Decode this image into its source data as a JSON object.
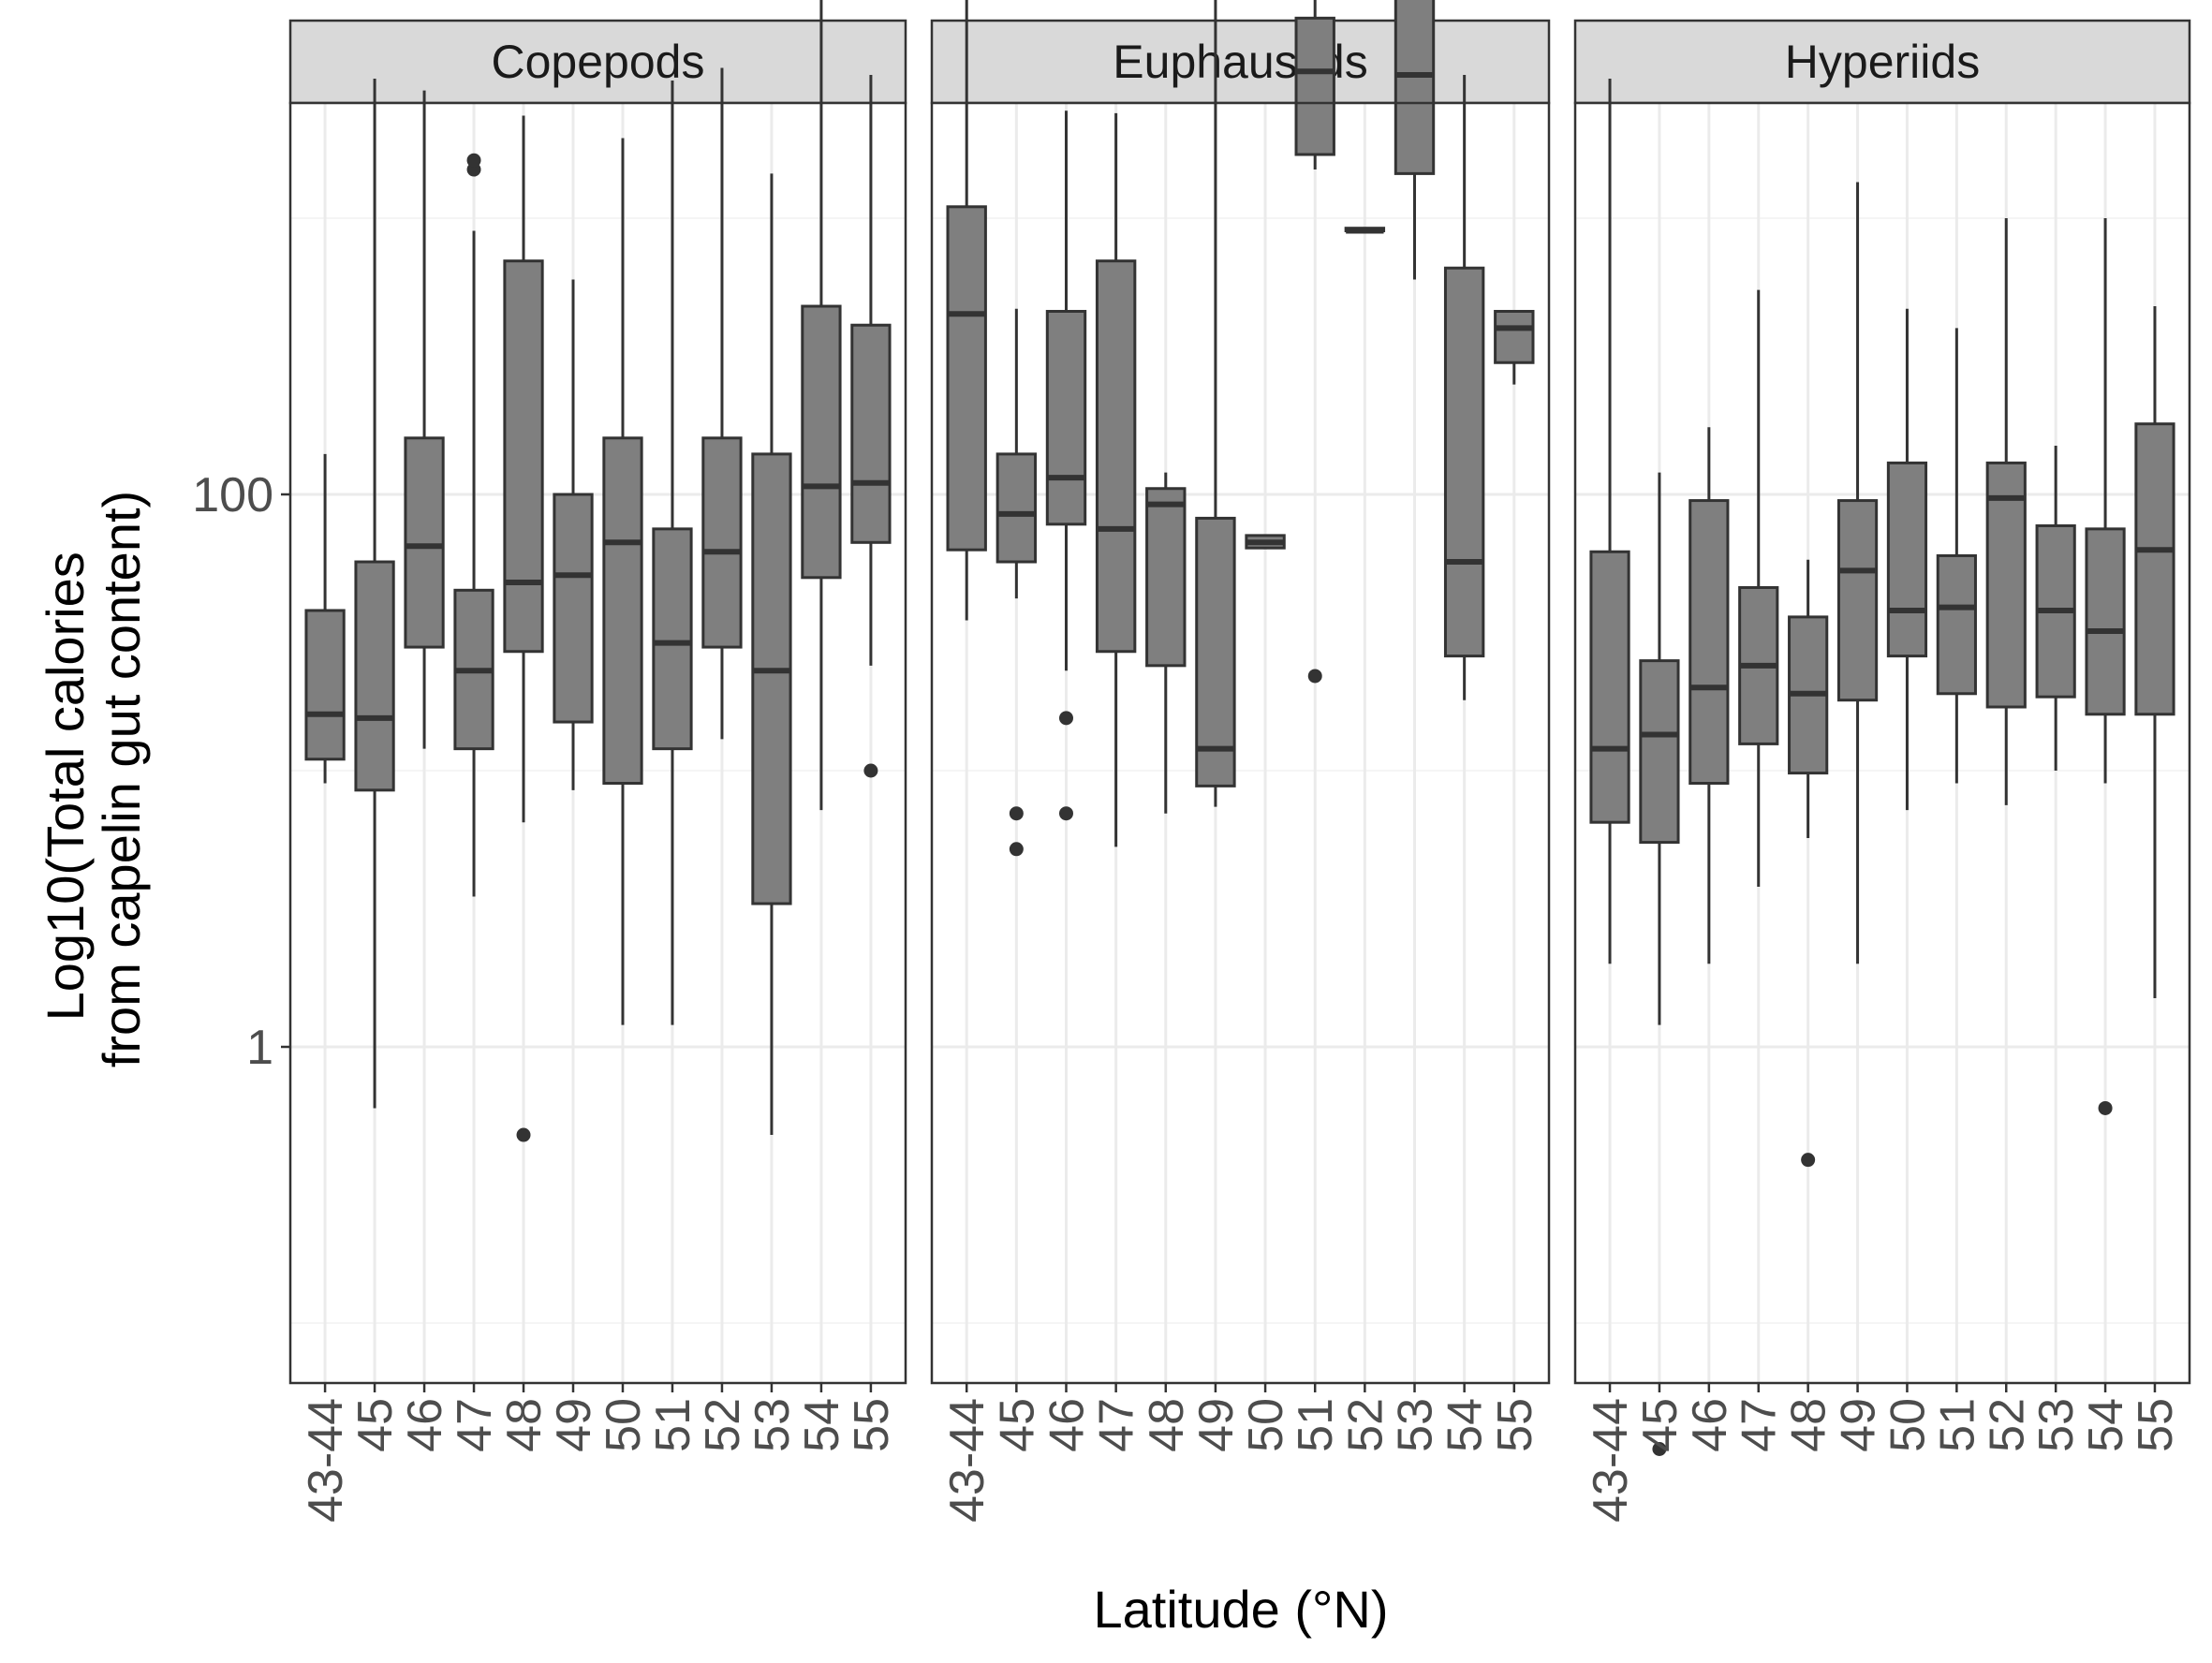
{
  "chart_data": {
    "type": "boxplot",
    "facets": [
      "Copepods",
      "Euphausiids",
      "Hyperiids"
    ],
    "categories": [
      "43-44",
      "45",
      "46",
      "47",
      "48",
      "49",
      "50",
      "51",
      "52",
      "53",
      "54",
      "55"
    ],
    "xlabel": "Latitude (°N)",
    "ylabel_lines": [
      "Log10(Total calories",
      "from capelin gut content)"
    ],
    "yscale": "log10",
    "ylim": [
      0.01,
      25000
    ],
    "yticks": [
      1,
      100
    ],
    "ytick_labels": [
      "1",
      "100"
    ],
    "grid": "on",
    "panels": [
      {
        "facet": "Copepods",
        "boxes": [
          {
            "category": "43-44",
            "whisker_low": 9,
            "q1": 11,
            "median": 16,
            "q3": 38,
            "whisker_high": 140,
            "outliers": []
          },
          {
            "category": "45",
            "whisker_low": 0.6,
            "q1": 8.5,
            "median": 15.5,
            "q3": 57,
            "whisker_high": 3200,
            "outliers": []
          },
          {
            "category": "46",
            "whisker_low": 12,
            "q1": 28,
            "median": 65,
            "q3": 160,
            "whisker_high": 2900,
            "outliers": []
          },
          {
            "category": "47",
            "whisker_low": 3.5,
            "q1": 12,
            "median": 23,
            "q3": 45,
            "whisker_high": 900,
            "outliers": [
              1500,
              1620
            ]
          },
          {
            "category": "48",
            "whisker_low": 6.5,
            "q1": 27,
            "median": 48,
            "q3": 700,
            "whisker_high": 2350,
            "outliers": [
              0.48
            ]
          },
          {
            "category": "49",
            "whisker_low": 8.5,
            "q1": 15,
            "median": 51,
            "q3": 100,
            "whisker_high": 600,
            "outliers": []
          },
          {
            "category": "50",
            "whisker_low": 1.2,
            "q1": 9,
            "median": 67,
            "q3": 160,
            "whisker_high": 1950,
            "outliers": []
          },
          {
            "category": "51",
            "whisker_low": 1.2,
            "q1": 12,
            "median": 29,
            "q3": 75,
            "whisker_high": 3150,
            "outliers": []
          },
          {
            "category": "52",
            "whisker_low": 13,
            "q1": 28,
            "median": 62,
            "q3": 160,
            "whisker_high": 3500,
            "outliers": []
          },
          {
            "category": "53",
            "whisker_low": 0.48,
            "q1": 3.3,
            "median": 23,
            "q3": 140,
            "whisker_high": 1450,
            "outliers": []
          },
          {
            "category": "54",
            "whisker_low": 7.2,
            "q1": 50,
            "median": 107,
            "q3": 480,
            "whisker_high": 11000,
            "outliers": []
          },
          {
            "category": "55",
            "whisker_low": 24,
            "q1": 67,
            "median": 110,
            "q3": 410,
            "whisker_high": 3300,
            "outliers": [
              10
            ]
          }
        ]
      },
      {
        "facet": "Euphausiids",
        "boxes": [
          {
            "category": "43-44",
            "whisker_low": 35,
            "q1": 63,
            "median": 450,
            "q3": 1100,
            "whisker_high": 17000,
            "outliers": []
          },
          {
            "category": "45",
            "whisker_low": 42,
            "q1": 57,
            "median": 85,
            "q3": 140,
            "whisker_high": 470,
            "outliers": [
              7,
              5.2
            ]
          },
          {
            "category": "46",
            "whisker_low": 23,
            "q1": 78,
            "median": 115,
            "q3": 460,
            "whisker_high": 2450,
            "outliers": [
              15.5,
              7
            ]
          },
          {
            "category": "47",
            "whisker_low": 5.3,
            "q1": 27,
            "median": 75,
            "q3": 700,
            "whisker_high": 2400,
            "outliers": []
          },
          {
            "category": "48",
            "whisker_low": 7,
            "q1": 24,
            "median": 92,
            "q3": 105,
            "whisker_high": 120,
            "outliers": []
          },
          {
            "category": "49",
            "whisker_low": 7.4,
            "q1": 8.8,
            "median": 12,
            "q3": 82,
            "whisker_high": 9800,
            "outliers": []
          },
          {
            "category": "50",
            "whisker_low": 64,
            "q1": 64,
            "median": 67,
            "q3": 71,
            "whisker_high": 71,
            "outliers": []
          },
          {
            "category": "51",
            "whisker_low": 1500,
            "q1": 1700,
            "median": 3400,
            "q3": 5300,
            "whisker_high": 7500,
            "outliers": [
              22
            ]
          },
          {
            "category": "52",
            "whisker_low": 900,
            "q1": 900,
            "median": 900,
            "q3": 920,
            "whisker_high": 920,
            "outliers": []
          },
          {
            "category": "53",
            "whisker_low": 600,
            "q1": 1450,
            "median": 3300,
            "q3": 7400,
            "whisker_high": 14500,
            "outliers": []
          },
          {
            "category": "54",
            "whisker_low": 18,
            "q1": 26,
            "median": 57,
            "q3": 660,
            "whisker_high": 3300,
            "outliers": []
          },
          {
            "category": "55",
            "whisker_low": 250,
            "q1": 300,
            "median": 400,
            "q3": 460,
            "whisker_high": 460,
            "outliers": []
          }
        ]
      },
      {
        "facet": "Hyperiids",
        "boxes": [
          {
            "category": "43-44",
            "whisker_low": 2,
            "q1": 6.5,
            "median": 12,
            "q3": 62,
            "whisker_high": 3200,
            "outliers": []
          },
          {
            "category": "45",
            "whisker_low": 1.2,
            "q1": 5.5,
            "median": 13.5,
            "q3": 25,
            "whisker_high": 120,
            "outliers": [
              0.035
            ]
          },
          {
            "category": "46",
            "whisker_low": 2,
            "q1": 9,
            "median": 20,
            "q3": 95,
            "whisker_high": 175,
            "outliers": []
          },
          {
            "category": "47",
            "whisker_low": 3.8,
            "q1": 12.5,
            "median": 24,
            "q3": 46,
            "whisker_high": 550,
            "outliers": []
          },
          {
            "category": "48",
            "whisker_low": 5.7,
            "q1": 9.8,
            "median": 19,
            "q3": 36,
            "whisker_high": 58,
            "outliers": [
              0.39
            ]
          },
          {
            "category": "49",
            "whisker_low": 2,
            "q1": 18,
            "median": 53,
            "q3": 95,
            "whisker_high": 1350,
            "outliers": []
          },
          {
            "category": "50",
            "whisker_low": 7.2,
            "q1": 26,
            "median": 38,
            "q3": 130,
            "whisker_high": 470,
            "outliers": []
          },
          {
            "category": "51",
            "whisker_low": 9,
            "q1": 19,
            "median": 39,
            "q3": 60,
            "whisker_high": 400,
            "outliers": []
          },
          {
            "category": "52",
            "whisker_low": 7.5,
            "q1": 17,
            "median": 97,
            "q3": 130,
            "whisker_high": 1000,
            "outliers": []
          },
          {
            "category": "53",
            "whisker_low": 10,
            "q1": 18.5,
            "median": 38,
            "q3": 77,
            "whisker_high": 150,
            "outliers": []
          },
          {
            "category": "54",
            "whisker_low": 9,
            "q1": 16,
            "median": 32,
            "q3": 75,
            "whisker_high": 1000,
            "outliers": [
              0.6
            ]
          },
          {
            "category": "55",
            "whisker_low": 1.5,
            "q1": 16,
            "median": 63,
            "q3": 180,
            "whisker_high": 480,
            "outliers": []
          }
        ]
      }
    ]
  },
  "colors": {
    "box_fill": "#7f7f7f",
    "box_stroke": "#333333",
    "strip_fill": "#d9d9d9",
    "panel_border": "#333333",
    "grid_major": "#ebebeb",
    "grid_minor": "#f5f5f5",
    "tick_text": "#4d4d4d"
  }
}
